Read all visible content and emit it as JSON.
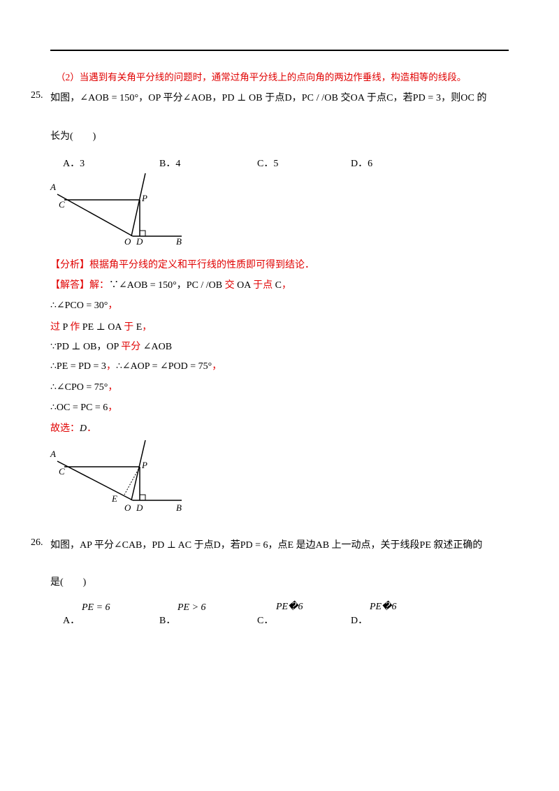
{
  "note": "（2）当遇到有关角平分线的问题时，通常过角平分线上的点向角的两边作垂线，构造相等的线段。",
  "q25": {
    "number": "25.",
    "stem": [
      "如图，∠AOB = 150°，OP 平分∠AOB，PD ⊥ OB 于点D，PC / /OB 交OA 于点C，若PD = 3，则OC 的",
      "长为(　　)"
    ],
    "options": [
      "A．3",
      "B．4",
      "C．5",
      "D．6"
    ],
    "figure": {
      "labels": [
        "A",
        "C",
        "P",
        "O",
        "D",
        "B"
      ]
    },
    "analysis": "【分析】根据角平分线的定义和平行线的性质即可得到结论．",
    "solution": [
      [
        "【解答】解：",
        "∵∠AOB = 150°，PC / /OB ",
        "交",
        " OA ",
        "于点",
        " C",
        "，"
      ],
      [
        "∴∠PCO = 30°",
        "，"
      ],
      [
        "过",
        " P ",
        "作",
        " PE ⊥ OA ",
        "于",
        " E",
        "，"
      ],
      [
        "∵PD ⊥ OB，OP ",
        "平分",
        " ∠AOB"
      ],
      [
        "∴PE = PD = 3",
        "，",
        "∴∠AOP = ∠POD = 75°",
        "，"
      ],
      [
        "∴∠CPO = 75°",
        "，"
      ],
      [
        "∴OC = PC = 6",
        "，"
      ],
      [
        "故选：",
        "D",
        "．"
      ]
    ],
    "figure2": {
      "labels": [
        "A",
        "C",
        "P",
        "E",
        "O",
        "D",
        "B"
      ]
    }
  },
  "q26": {
    "number": "26.",
    "stem": [
      "如图，AP 平分∠CAB，PD ⊥ AC 于点D，若PD = 6，点E 是边AB 上一动点，关于线段PE 叙述正确的",
      "是(　　)"
    ],
    "options": [
      {
        "label": "A．",
        "formula": "PE = 6"
      },
      {
        "label": "B．",
        "formula": "PE > 6"
      },
      {
        "label": "C．",
        "formula": "PE�6"
      },
      {
        "label": "D．",
        "formula": "PE�6"
      }
    ]
  }
}
